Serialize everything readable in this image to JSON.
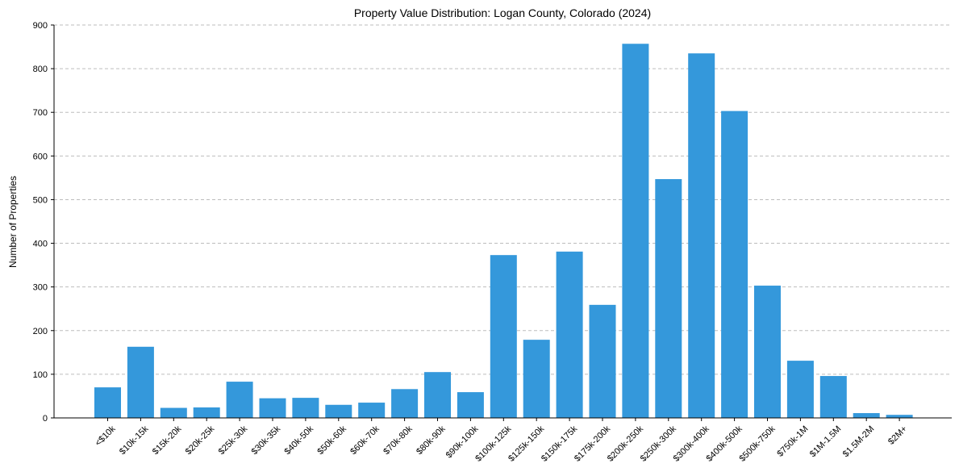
{
  "chart_data": {
    "type": "bar",
    "title": "Property Value Distribution: Logan County, Colorado (2024)",
    "xlabel": "",
    "ylabel": "Number of Properties",
    "ylim": [
      0,
      900
    ],
    "yticks": [
      0,
      100,
      200,
      300,
      400,
      500,
      600,
      700,
      800,
      900
    ],
    "grid": "y-dashed",
    "bar_color": "#3498db",
    "categories": [
      "<$10k",
      "$10k-15k",
      "$15k-20k",
      "$20k-25k",
      "$25k-30k",
      "$30k-35k",
      "$40k-50k",
      "$50k-60k",
      "$60k-70k",
      "$70k-80k",
      "$80k-90k",
      "$90k-100k",
      "$100k-125k",
      "$125k-150k",
      "$150k-175k",
      "$175k-200k",
      "$200k-250k",
      "$250k-300k",
      "$300k-400k",
      "$400k-500k",
      "$500k-750k",
      "$750k-1M",
      "$1M-1.5M",
      "$1.5M-2M",
      "$2M+"
    ],
    "values": [
      70,
      163,
      23,
      24,
      83,
      45,
      46,
      30,
      35,
      66,
      105,
      59,
      373,
      179,
      381,
      259,
      857,
      547,
      835,
      703,
      303,
      131,
      96,
      11,
      7
    ]
  }
}
